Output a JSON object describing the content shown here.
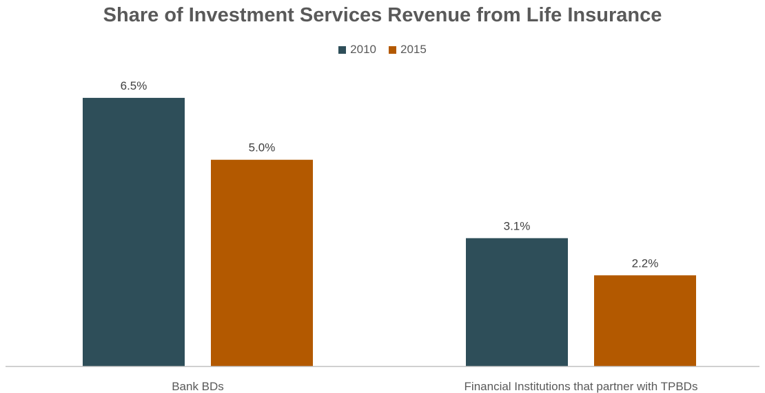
{
  "chart_data": {
    "type": "bar",
    "title": "Share of Investment Services Revenue from Life Insurance",
    "categories": [
      "Bank BDs",
      "Financial Institutions that partner with TPBDs"
    ],
    "series": [
      {
        "name": "2010",
        "values": [
          6.5,
          3.1
        ],
        "labels": [
          "6.5%",
          "3.1%"
        ],
        "color": "#2E4E59"
      },
      {
        "name": "2015",
        "values": [
          5.0,
          2.2
        ],
        "labels": [
          "5.0%",
          "2.2%"
        ],
        "color": "#B35900"
      }
    ],
    "ylim": [
      0,
      7
    ],
    "unit": "%",
    "grid": false,
    "legend_position": "top"
  }
}
